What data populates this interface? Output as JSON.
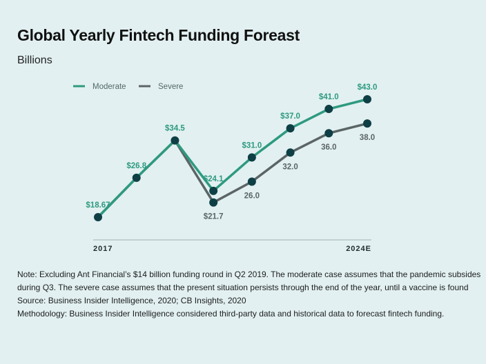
{
  "header": {
    "title": "Global Yearly Fintech Funding Foreast",
    "subtitle": "Billions"
  },
  "chart_data": {
    "type": "line",
    "x_labels": [
      "2017",
      "",
      "",
      "",
      "",
      "",
      "",
      "2024E"
    ],
    "series": [
      {
        "name": "Moderate",
        "color": "#2e9a80",
        "values": [
          18.67,
          26.8,
          34.5,
          24.1,
          31.0,
          37.0,
          41.0,
          43.0
        ],
        "labels": [
          "$18.67",
          "$26.8",
          "$34.5",
          "$24.1",
          "$31.0",
          "$37.0",
          "$41.0",
          "$43.0"
        ]
      },
      {
        "name": "Severe",
        "color": "#5b6566",
        "values": [
          18.67,
          26.8,
          34.5,
          21.7,
          26.0,
          32.0,
          36.0,
          38.0
        ],
        "labels": [
          "",
          "",
          "",
          "$21.7",
          "26.0",
          "32.0",
          "36.0",
          "38.0"
        ]
      }
    ],
    "legend_position": "top-left",
    "grid": false
  },
  "notes": {
    "line1": "Note: Excluding Ant Financial’s $14 billion funding round in Q2 2019. The moderate case assumes that the pandemic subsides",
    "line2": "during Q3. The severe case assumes that the present situation persists through the end of the year, until a vaccine is found",
    "line3": "Source: Business Insider Intelligence, 2020; CB Insights, 2020",
    "line4": "Methodology: Business Insider Intelligence considered third-party data and historical data to forecast fintech funding."
  }
}
